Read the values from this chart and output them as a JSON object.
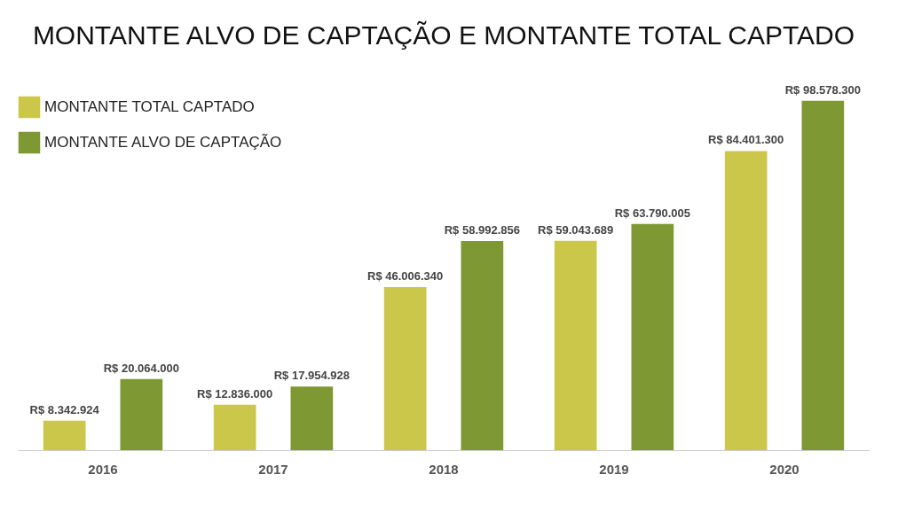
{
  "chart_data": {
    "type": "bar",
    "title": "MONTANTE ALVO DE CAPTAÇÃO E MONTANTE TOTAL CAPTADO",
    "categories": [
      "2016",
      "2017",
      "2018",
      "2019",
      "2020"
    ],
    "series": [
      {
        "name": "MONTANTE TOTAL CAPTADO",
        "color": "#cbc74a",
        "values": [
          8342924,
          12836000,
          46006340,
          59043689,
          84401300
        ],
        "value_labels": [
          "R$ 8.342.924",
          "R$ 12.836.000",
          "R$ 46.006.340",
          "R$ 59.043.689",
          "R$ 84.401.300"
        ]
      },
      {
        "name": "MONTANTE ALVO DE CAPTAÇÃO",
        "color": "#7e9933",
        "values": [
          20064000,
          17954928,
          58992856,
          63790005,
          98578300
        ],
        "value_labels": [
          "R$ 20.064.000",
          "R$ 17.954.928",
          "R$ 58.992.856",
          "R$ 63.790.005",
          "R$ 98.578.300"
        ]
      }
    ],
    "legend": "top left",
    "grid": false,
    "tick_labels": "x"
  }
}
